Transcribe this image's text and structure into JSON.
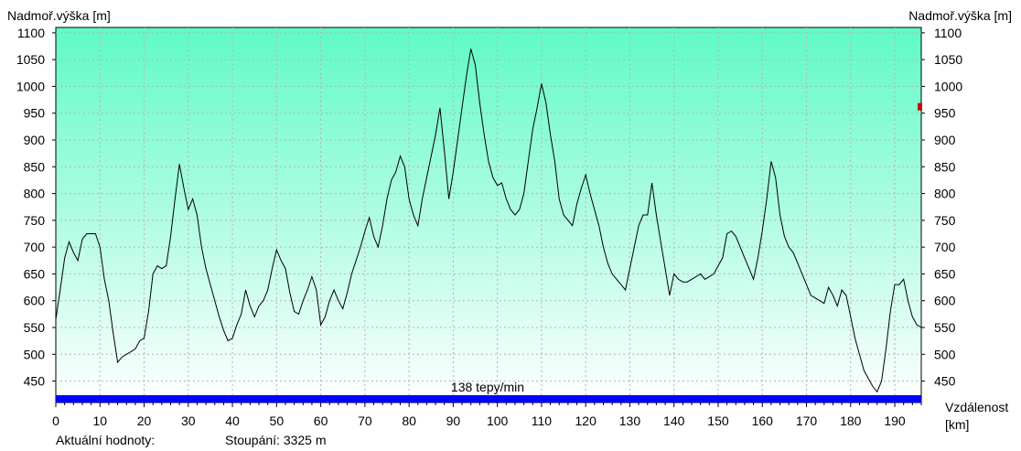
{
  "chart_data": {
    "type": "area",
    "ylabel_left": "Nadmoř.výška [m]",
    "ylabel_right": "Nadmoř.výška [m]",
    "xlabel": "Vzdálenost",
    "xlabel_unit": "[km]",
    "ylim": [
      410,
      1110
    ],
    "xlim": [
      0,
      196
    ],
    "yticks": [
      450,
      500,
      550,
      600,
      650,
      700,
      750,
      800,
      850,
      900,
      950,
      1000,
      1050,
      1100
    ],
    "xticks": [
      0,
      10,
      20,
      30,
      40,
      50,
      60,
      70,
      80,
      90,
      100,
      110,
      120,
      130,
      140,
      150,
      160,
      170,
      180,
      190
    ],
    "grid": true,
    "gradient_top_color": "#5ffac6",
    "gradient_bottom_color": "#ffffff",
    "line_color": "#000000",
    "series": [
      {
        "x": [
          0,
          1,
          2,
          3,
          4,
          5,
          6,
          7,
          8,
          9,
          10,
          11,
          12,
          13,
          14,
          15,
          16,
          17,
          18,
          19,
          20,
          21,
          22,
          23,
          24,
          25,
          26,
          27,
          28,
          29,
          30,
          31,
          32,
          33,
          34,
          35,
          36,
          37,
          38,
          39,
          40,
          41,
          42,
          43,
          44,
          45,
          46,
          47,
          48,
          49,
          50,
          51,
          52,
          53,
          54,
          55,
          56,
          57,
          58,
          59,
          60,
          61,
          62,
          63,
          64,
          65,
          66,
          67,
          68,
          69,
          70,
          71,
          72,
          73,
          74,
          75,
          76,
          77,
          78,
          79,
          80,
          81,
          82,
          83,
          84,
          85,
          86,
          87,
          88,
          89,
          90,
          91,
          92,
          93,
          94,
          95,
          96,
          97,
          98,
          99,
          100,
          101,
          102,
          103,
          104,
          105,
          106,
          107,
          108,
          109,
          110,
          111,
          112,
          113,
          114,
          115,
          116,
          117,
          118,
          119,
          120,
          121,
          122,
          123,
          124,
          125,
          126,
          127,
          128,
          129,
          130,
          131,
          132,
          133,
          134,
          135,
          136,
          137,
          138,
          139,
          140,
          141,
          142,
          143,
          144,
          145,
          146,
          147,
          148,
          149,
          150,
          151,
          152,
          153,
          154,
          155,
          156,
          157,
          158,
          159,
          160,
          161,
          162,
          163,
          164,
          165,
          166,
          167,
          168,
          169,
          170,
          171,
          172,
          173,
          174,
          175,
          176,
          177,
          178,
          179,
          180,
          181,
          182,
          183,
          184,
          185,
          186,
          187,
          188,
          189,
          190,
          191,
          192,
          193,
          194,
          195,
          196
        ],
        "y": [
          565,
          620,
          680,
          710,
          690,
          675,
          715,
          725,
          725,
          725,
          700,
          640,
          600,
          540,
          485,
          495,
          500,
          505,
          510,
          525,
          530,
          580,
          650,
          665,
          660,
          665,
          720,
          790,
          855,
          810,
          770,
          790,
          760,
          700,
          660,
          630,
          600,
          570,
          545,
          525,
          530,
          555,
          575,
          620,
          590,
          570,
          590,
          600,
          620,
          660,
          695,
          675,
          660,
          615,
          580,
          575,
          600,
          620,
          645,
          620,
          555,
          570,
          600,
          620,
          600,
          585,
          615,
          650,
          675,
          700,
          730,
          755,
          720,
          700,
          740,
          790,
          825,
          840,
          870,
          850,
          790,
          760,
          740,
          790,
          830,
          870,
          910,
          960,
          880,
          790,
          840,
          900,
          960,
          1020,
          1070,
          1040,
          970,
          910,
          860,
          830,
          815,
          820,
          790,
          770,
          760,
          770,
          800,
          860,
          920,
          960,
          1005,
          970,
          910,
          860,
          790,
          760,
          750,
          740,
          780,
          810,
          835,
          800,
          770,
          740,
          700,
          670,
          650,
          640,
          630,
          620,
          660,
          700,
          740,
          760,
          760,
          820,
          760,
          710,
          660,
          610,
          650,
          640,
          635,
          635,
          640,
          645,
          650,
          640,
          645,
          650,
          665,
          680,
          725,
          730,
          720,
          700,
          680,
          660,
          640,
          680,
          730,
          790,
          860,
          830,
          760,
          720,
          700,
          690,
          670,
          650,
          630,
          610,
          605,
          600,
          595,
          625,
          610,
          590,
          620,
          610,
          570,
          530,
          500,
          470,
          455,
          440,
          430,
          450,
          510,
          580,
          630,
          630,
          640,
          600,
          570,
          555,
          550
        ]
      }
    ],
    "legend_bar_color": "#0000ff",
    "legend_bar_label": "138 tepy/min",
    "right_marker_value": 962,
    "right_marker_color": "#cc0000"
  },
  "footer": {
    "current_values_label": "Aktuální hodnoty:",
    "ascent_label": "Stoupání: 3325 m"
  }
}
